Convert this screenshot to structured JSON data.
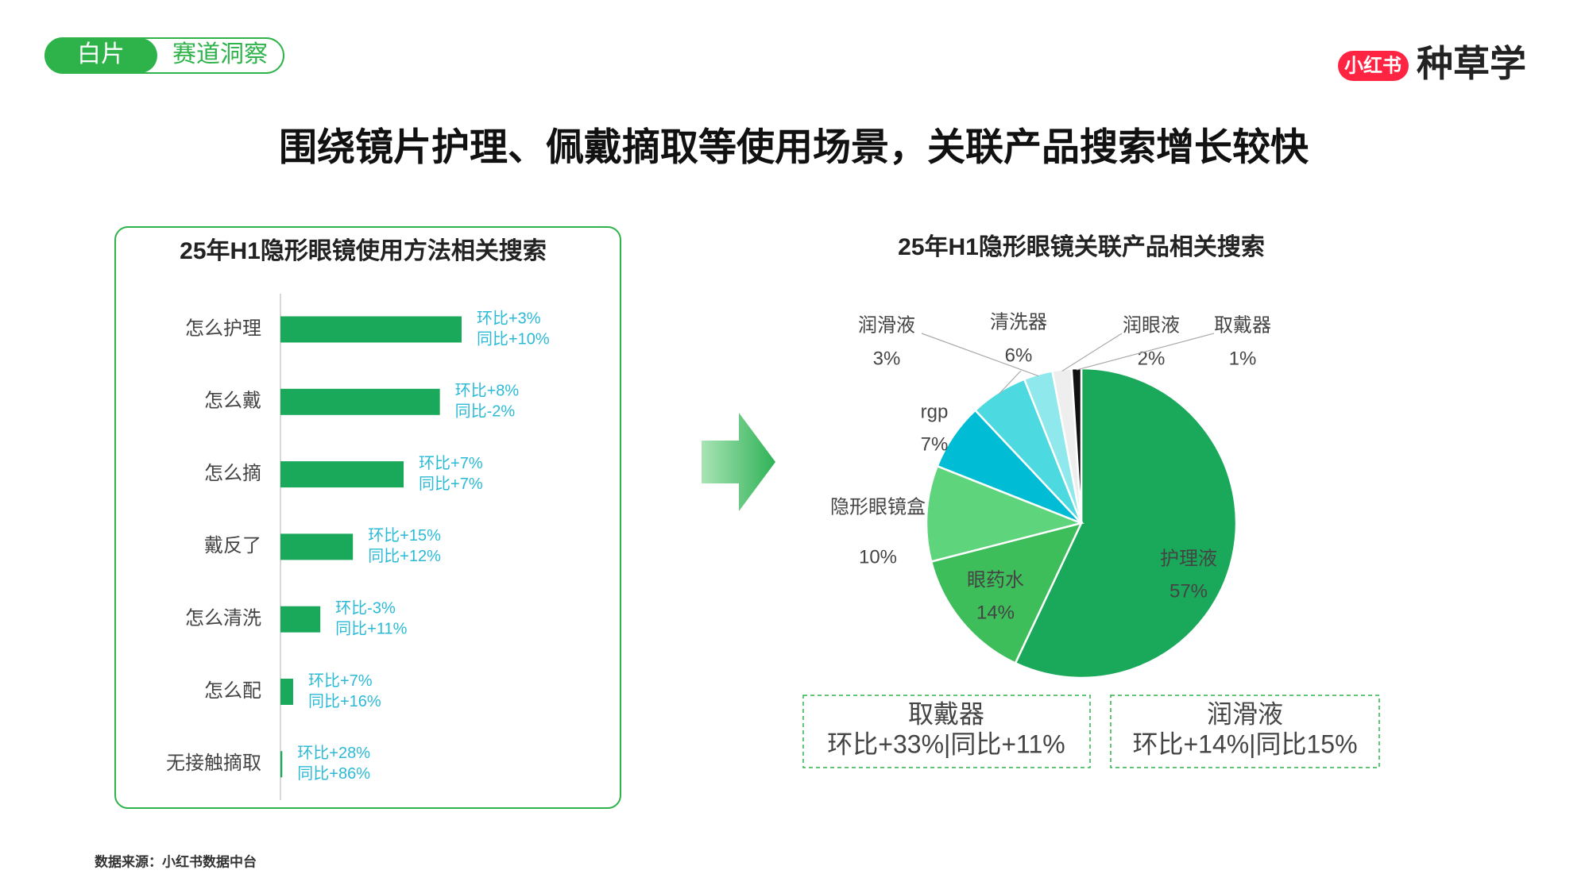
{
  "header": {
    "tag_active": "白片",
    "tag": "赛道洞察",
    "brand_badge": "小红书",
    "brand": "种草学"
  },
  "title": "围绕镜片护理、佩戴摘取等使用场景，关联产品搜索增长较快",
  "chart_data": [
    {
      "type": "bar",
      "orientation": "horizontal",
      "title": "25年H1隐形眼镜使用方法相关搜索",
      "categories": [
        "怎么护理",
        "怎么戴",
        "怎么摘",
        "戴反了",
        "怎么清洗",
        "怎么配",
        "无接触摘取"
      ],
      "values": [
        100,
        88,
        68,
        40,
        22,
        7,
        1
      ],
      "color": "#1aa85a",
      "xlim": [
        0,
        100
      ],
      "labels_mom": [
        "环比+3%",
        "环比+8%",
        "环比+7%",
        "环比+15%",
        "环比-3%",
        "环比+7%",
        "环比+28%"
      ],
      "labels_yoy": [
        "同比+10%",
        "同比-2%",
        "同比+7%",
        "同比+12%",
        "同比+11%",
        "同比+16%",
        "同比+86%"
      ]
    },
    {
      "type": "pie",
      "title": "25年H1隐形眼镜关联产品相关搜索",
      "categories": [
        "护理液",
        "眼药水",
        "隐形眼镜盒",
        "rgp",
        "清洗器",
        "润滑液",
        "润眼液",
        "取戴器"
      ],
      "values": [
        57,
        14,
        10,
        7,
        6,
        3,
        2,
        1
      ],
      "value_labels": [
        "57%",
        "14%",
        "10%",
        "7%",
        "6%",
        "3%",
        "2%",
        "1%"
      ],
      "colors": [
        "#1aa85a",
        "#3dbe5a",
        "#5ed47c",
        "#00bcd4",
        "#4dd9e0",
        "#8ee8ec",
        "#eeeeee",
        "#111111"
      ]
    }
  ],
  "callouts": [
    {
      "title": "取戴器",
      "text": "环比+33%|同比+11%"
    },
    {
      "title": "润滑液",
      "text": "环比+14%|同比15%"
    }
  ],
  "source": "数据来源：小红书数据中台"
}
